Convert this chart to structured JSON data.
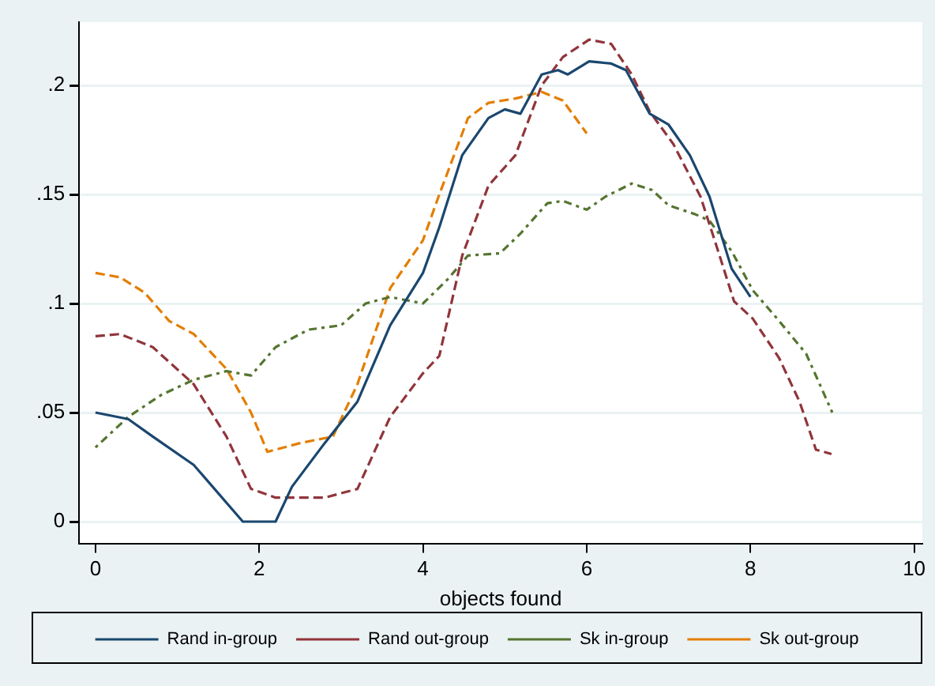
{
  "chart_data": {
    "type": "line",
    "xlabel": "objects found",
    "xlim": [
      -0.2,
      10.1
    ],
    "xticks": [
      0,
      2,
      4,
      6,
      8,
      10
    ],
    "ylim": [
      -0.01,
      0.229
    ],
    "yticks": [
      0,
      {
        "value": 0.05,
        "label": ".05"
      },
      {
        "value": 0.1,
        "label": ".1"
      },
      {
        "value": 0.15,
        "label": ".15"
      },
      {
        "value": 0.2,
        "label": ".2"
      }
    ],
    "grid": "y",
    "legend": "bottom",
    "marker": "none",
    "series": [
      {
        "name": "Rand in-group",
        "color": "#1a476f",
        "line_style": "solid",
        "x": [
          0,
          0.4,
          0.7,
          1.2,
          1.8,
          2.2,
          2.4,
          2.8,
          3.2,
          3.6,
          4.0,
          4.2,
          4.48,
          4.8,
          5.0,
          5.19,
          5.45,
          5.65,
          5.77,
          6.03,
          6.3,
          6.48,
          6.77,
          7.0,
          7.26,
          7.5,
          7.77,
          8.0
        ],
        "values": [
          0.05,
          0.047,
          0.039,
          0.026,
          0,
          0,
          0.016,
          0.036,
          0.055,
          0.09,
          0.114,
          0.135,
          0.168,
          0.185,
          0.189,
          0.187,
          0.205,
          0.207,
          0.205,
          0.211,
          0.21,
          0.207,
          0.187,
          0.182,
          0.168,
          0.149,
          0.116,
          0.103
        ]
      },
      {
        "name": "Rand out-group",
        "color": "#90353b",
        "line_style": "dashed",
        "x": [
          0,
          0.3,
          0.7,
          1.2,
          1.6,
          1.9,
          2.2,
          2.8,
          3.2,
          3.6,
          4.0,
          4.2,
          4.48,
          4.8,
          5.13,
          5.45,
          5.71,
          6.03,
          6.3,
          6.55,
          6.77,
          7.06,
          7.39,
          7.58,
          7.8,
          8.03,
          8.35,
          8.6,
          8.8,
          8.99
        ],
        "values": [
          0.085,
          0.086,
          0.08,
          0.063,
          0.039,
          0.015,
          0.011,
          0.011,
          0.015,
          0.048,
          0.068,
          0.076,
          0.122,
          0.154,
          0.168,
          0.2,
          0.213,
          0.221,
          0.219,
          0.205,
          0.188,
          0.173,
          0.149,
          0.127,
          0.101,
          0.093,
          0.075,
          0.055,
          0.033,
          0.031
        ]
      },
      {
        "name": "Sk in-group",
        "color": "#55752f",
        "line_style": "dotted",
        "x": [
          0,
          0.4,
          0.8,
          1.2,
          1.6,
          1.9,
          2.2,
          2.6,
          3.0,
          3.3,
          3.6,
          4.0,
          4.3,
          4.55,
          4.94,
          5.19,
          5.52,
          5.71,
          6.0,
          6.23,
          6.55,
          6.8,
          7.0,
          7.32,
          7.5,
          7.77,
          8.03,
          8.35,
          8.68,
          9.0
        ],
        "values": [
          0.034,
          0.048,
          0.058,
          0.065,
          0.069,
          0.067,
          0.08,
          0.088,
          0.09,
          0.1,
          0.103,
          0.1,
          0.111,
          0.122,
          0.123,
          0.132,
          0.146,
          0.147,
          0.143,
          0.149,
          0.155,
          0.152,
          0.145,
          0.141,
          0.138,
          0.124,
          0.106,
          0.092,
          0.077,
          0.05
        ]
      },
      {
        "name": "Sk out-group",
        "color": "#e37e00",
        "line_style": "dashed",
        "x": [
          0,
          0.3,
          0.6,
          0.9,
          1.2,
          1.6,
          1.9,
          2.1,
          2.5,
          2.9,
          3.2,
          3.6,
          4.0,
          4.2,
          4.55,
          4.8,
          5.13,
          5.45,
          5.71,
          6.0
        ],
        "values": [
          0.114,
          0.112,
          0.105,
          0.092,
          0.086,
          0.07,
          0.05,
          0.032,
          0.036,
          0.039,
          0.063,
          0.107,
          0.129,
          0.15,
          0.185,
          0.192,
          0.194,
          0.197,
          0.193,
          0.178
        ]
      }
    ]
  }
}
